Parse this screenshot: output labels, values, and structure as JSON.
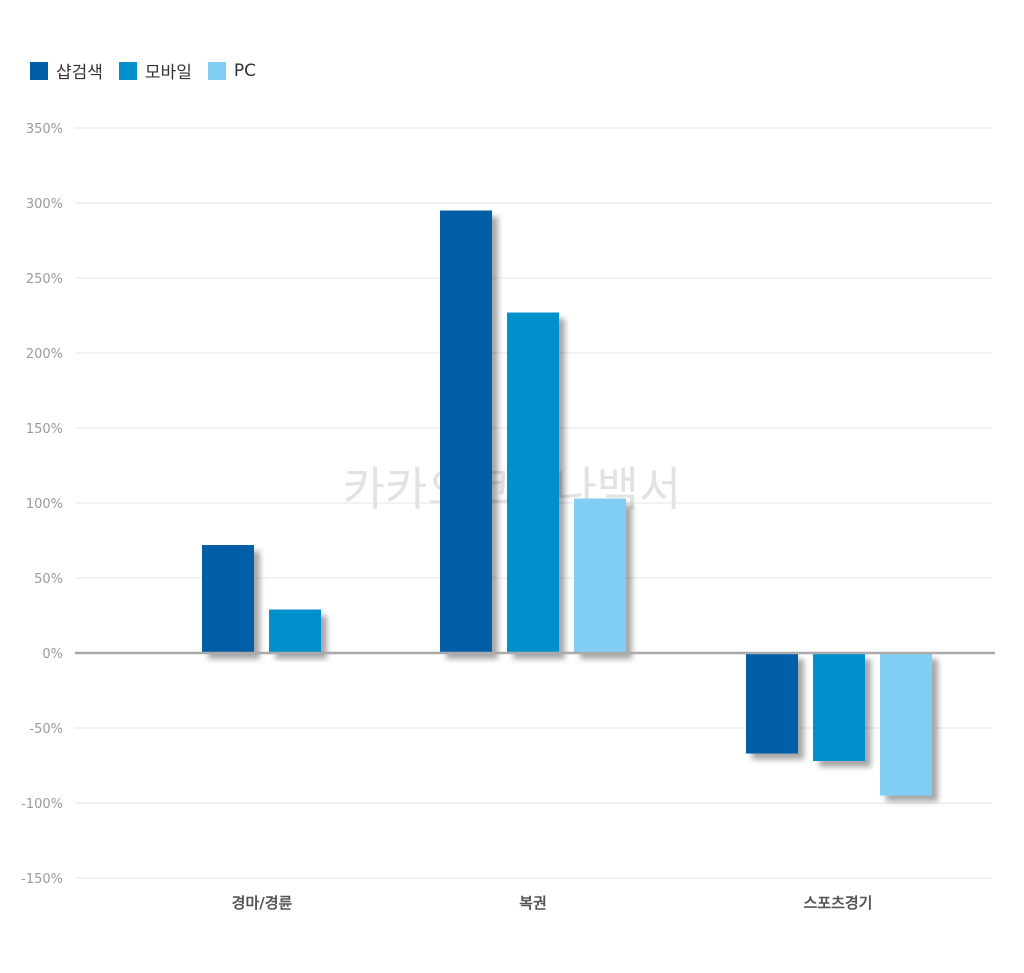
{
  "colors": {
    "shop_search": "#005ea6",
    "mobile": "#0090cc",
    "pc": "#80cef3"
  },
  "watermark": "카카오코로나백서",
  "chart_data": {
    "type": "bar",
    "categories": [
      "경마/경륜",
      "복권",
      "스포츠경기"
    ],
    "series": [
      {
        "name": "샵검색",
        "values": [
          null,
          295,
          -67
        ],
        "color": "#005ea6"
      },
      {
        "name": "모바일",
        "values": [
          null,
          227,
          -72
        ],
        "color": "#0090cc"
      },
      {
        "name": "PC",
        "values": [
          null,
          103,
          -95
        ],
        "color": "#80cef3"
      }
    ],
    "bars_extra": {
      "cat0": [
        72,
        29,
        null
      ]
    },
    "ylim": [
      -150,
      350
    ],
    "yticks": [
      "350%",
      "300%",
      "250%",
      "200%",
      "150%",
      "100%",
      "50%",
      "0%",
      "-50%",
      "-100%",
      "-150%"
    ],
    "ytick_values": [
      350,
      300,
      250,
      200,
      150,
      100,
      50,
      0,
      -50,
      -100,
      -150
    ],
    "grid": true,
    "legend_position": "top-left"
  }
}
